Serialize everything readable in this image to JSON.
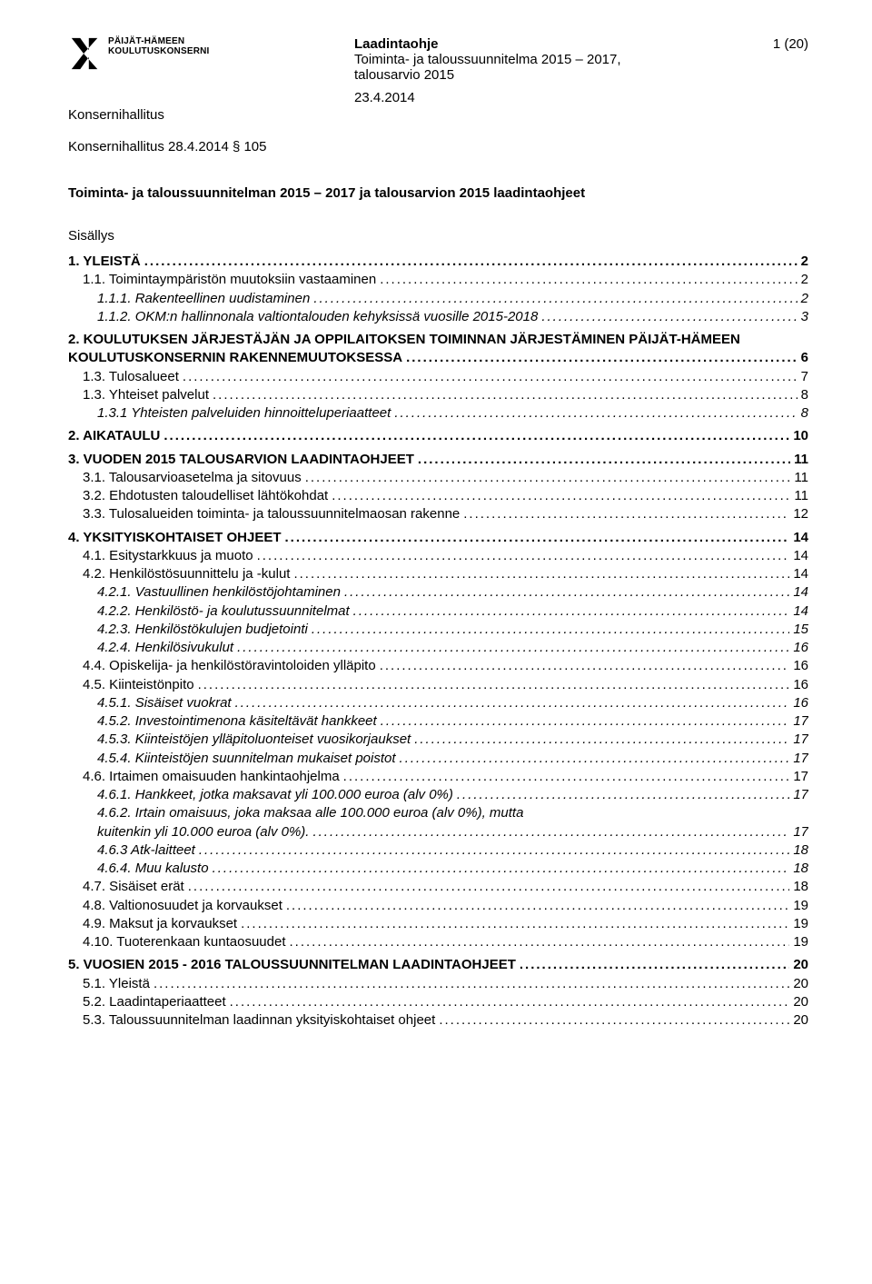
{
  "logo": {
    "line1": "PÄIJÄT-HÄMEEN",
    "line2": "KOULUTUSKONSERNI"
  },
  "header": {
    "title": "Laadintaohje",
    "sub1": "Toiminta- ja taloussuunnitelma 2015 – 2017,",
    "sub2": "talousarvio 2015",
    "page": "1 (20)",
    "date": "23.4.2014"
  },
  "konsernihallitus": "Konsernihallitus",
  "konserni_line": "Konsernihallitus 28.4.2014 § 105",
  "main_title": "Toiminta- ja taloussuunnitelman 2015 – 2017 ja talousarvion 2015 laadintaohjeet",
  "sisallys": "Sisällys",
  "toc": [
    {
      "level": 1,
      "label": "1.  YLEISTÄ",
      "page": "2"
    },
    {
      "level": 2,
      "label": "1.1.  Toimintaympäristön muutoksiin vastaaminen",
      "page": "2"
    },
    {
      "level": 3,
      "label": "1.1.1.  Rakenteellinen uudistaminen",
      "page": "2"
    },
    {
      "level": 3,
      "label": "1.1.2.  OKM:n hallinnonala valtiontalouden kehyksissä vuosille 2015-2018",
      "page": "3"
    },
    {
      "level": 1,
      "label": "2.  KOULUTUKSEN JÄRJESTÄJÄN JA OPPILAITOKSEN TOIMINNAN JÄRJESTÄMINEN PÄIJÄT-HÄMEEN KOULUTUSKONSERNIN RAKENNEMUUTOKSESSA",
      "page": "6",
      "wrap": true
    },
    {
      "level": 2,
      "label": "1.3. Tulosalueet",
      "page": "7"
    },
    {
      "level": 2,
      "label": "1.3.  Yhteiset palvelut",
      "page": "8"
    },
    {
      "level": 3,
      "label": "1.3.1 Yhteisten palveluiden hinnoitteluperiaatteet",
      "page": "8"
    },
    {
      "level": 1,
      "label": "2.  AIKATAULU",
      "page": "10"
    },
    {
      "level": 1,
      "label": "3. VUODEN 2015 TALOUSARVION LAADINTAOHJEET",
      "page": "11"
    },
    {
      "level": 2,
      "label": "3.1.  Talousarvioasetelma ja sitovuus",
      "page": "11"
    },
    {
      "level": 2,
      "label": "3.2.  Ehdotusten taloudelliset lähtökohdat",
      "page": "11"
    },
    {
      "level": 2,
      "label": "3.3.  Tulosalueiden toiminta- ja taloussuunnitelmaosan rakenne",
      "page": "12"
    },
    {
      "level": 1,
      "label": "4.  YKSITYISKOHTAISET OHJEET",
      "page": "14"
    },
    {
      "level": 2,
      "label": "4.1.  Esitystarkkuus ja muoto",
      "page": "14"
    },
    {
      "level": 2,
      "label": "4.2.  Henkilöstösuunnittelu ja -kulut",
      "page": "14"
    },
    {
      "level": 3,
      "label": "4.2.1. Vastuullinen henkilöstöjohtaminen",
      "page": "14"
    },
    {
      "level": 3,
      "label": "4.2.2. Henkilöstö- ja koulutussuunnitelmat",
      "page": "14"
    },
    {
      "level": 3,
      "label": "4.2.3. Henkilöstökulujen budjetointi",
      "page": "15"
    },
    {
      "level": 3,
      "label": "4.2.4. Henkilösivukulut",
      "page": "16"
    },
    {
      "level": 2,
      "label": "4.4.  Opiskelija- ja henkilöstöravintoloiden ylläpito",
      "page": "16"
    },
    {
      "level": 2,
      "label": "4.5.  Kiinteistönpito",
      "page": "16"
    },
    {
      "level": 3,
      "label": "4.5.1.  Sisäiset vuokrat",
      "page": "16"
    },
    {
      "level": 3,
      "label": "4.5.2.  Investointimenona käsiteltävät hankkeet",
      "page": "17"
    },
    {
      "level": 3,
      "label": "4.5.3.  Kiinteistöjen ylläpitoluonteiset vuosikorjaukset",
      "page": "17"
    },
    {
      "level": 3,
      "label": "4.5.4.  Kiinteistöjen suunnitelman mukaiset poistot",
      "page": "17"
    },
    {
      "level": 2,
      "label": "4.6.  Irtaimen omaisuuden hankintaohjelma",
      "page": "17"
    },
    {
      "level": 3,
      "label": "4.6.1.  Hankkeet, jotka maksavat yli 100.000 euroa (alv 0%)",
      "page": "17"
    },
    {
      "level": 3,
      "label": "4.6.2.  Irtain omaisuus, joka maksaa alle 100.000 euroa (alv 0%), mutta kuitenkin yli 10.000 euroa (alv 0%).",
      "page": "17",
      "wrap": true
    },
    {
      "level": 3,
      "label": "4.6.3 Atk-laitteet",
      "page": "18"
    },
    {
      "level": 3,
      "label": "4.6.4. Muu kalusto",
      "page": "18"
    },
    {
      "level": 2,
      "label": "4.7.  Sisäiset erät",
      "page": "18"
    },
    {
      "level": 2,
      "label": "4.8.  Valtionosuudet ja korvaukset",
      "page": "19"
    },
    {
      "level": 2,
      "label": "4.9.  Maksut ja korvaukset",
      "page": "19"
    },
    {
      "level": 2,
      "label": "4.10.  Tuoterenkaan kuntaosuudet",
      "page": "19"
    },
    {
      "level": 1,
      "label": "5.  VUOSIEN 2015 - 2016 TALOUSSUUNNITELMAN LAADINTAOHJEET",
      "page": "20"
    },
    {
      "level": 2,
      "label": "5.1.  Yleistä",
      "page": "20"
    },
    {
      "level": 2,
      "label": "5.2.  Laadintaperiaatteet",
      "page": "20"
    },
    {
      "level": 2,
      "label": "5.3.  Taloussuunnitelman laadinnan yksityiskohtaiset ohjeet",
      "page": "20"
    }
  ]
}
